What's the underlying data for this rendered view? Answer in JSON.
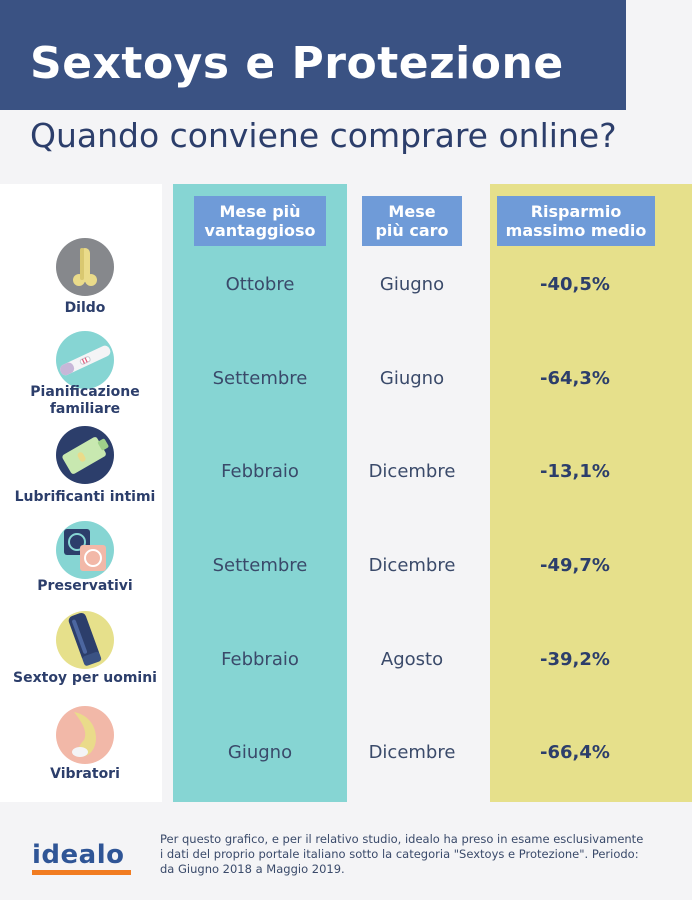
{
  "header": {
    "title": "Sextoys e Protezione",
    "subtitle": "Quando conviene comprare online?"
  },
  "columns": {
    "best_line1": "Mese più",
    "best_line2": "vantaggioso",
    "worst_line1": "Mese",
    "worst_line2": "più caro",
    "save_line1": "Risparmio",
    "save_line2": "massimo medio"
  },
  "rows": [
    {
      "label_line1": "Dildo",
      "label_line2": "",
      "icon": "dildo-icon",
      "best_month": "Ottobre",
      "worst_month": "Giugno",
      "max_saving": "-40,5%"
    },
    {
      "label_line1": "Pianificazione",
      "label_line2": "familiare",
      "icon": "pregnancy-test-icon",
      "best_month": "Settembre",
      "worst_month": "Giugno",
      "max_saving": "-64,3%"
    },
    {
      "label_line1": "Lubrificanti intimi",
      "label_line2": "",
      "icon": "lubricant-tube-icon",
      "best_month": "Febbraio",
      "worst_month": "Dicembre",
      "max_saving": "-13,1%"
    },
    {
      "label_line1": "Preservativi",
      "label_line2": "",
      "icon": "condom-icon",
      "best_month": "Settembre",
      "worst_month": "Dicembre",
      "max_saving": "-49,7%"
    },
    {
      "label_line1": "Sextoy per uomini",
      "label_line2": "",
      "icon": "male-toy-icon",
      "best_month": "Febbraio",
      "worst_month": "Agosto",
      "max_saving": "-39,2%"
    },
    {
      "label_line1": "Vibratori",
      "label_line2": "",
      "icon": "vibrator-icon",
      "best_month": "Giugno",
      "worst_month": "Dicembre",
      "max_saving": "-66,4%"
    }
  ],
  "footer": {
    "logo": "idealo",
    "note": "Per questo grafico, e per il relativo studio, idealo ha preso in esame esclusivamente i dati del proprio portale italiano sotto la categoria \"Sextoys e Protezione\". Periodo: da Giugno 2018 a Maggio 2019."
  },
  "colors": {
    "title_bar": "#3a5283",
    "header_box": "#6f9bd8",
    "best_column": "#86d5d3",
    "save_column": "#e6e08b",
    "logo_underline": "#f17c21"
  }
}
